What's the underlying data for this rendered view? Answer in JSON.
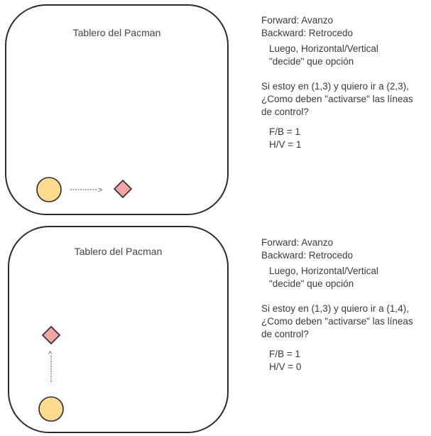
{
  "panels": [
    {
      "board_title": "Tablero del Pacman",
      "arrow_glyph": ">",
      "notes": {
        "forward": "Forward: Avanzo",
        "backward": "Backward: Retrocedo",
        "luego_1": "Luego, Horizontal/Vertical",
        "luego_2": "\"decide\" que opción",
        "question_1": "Si estoy en (1,3) y quiero ir a (2,3),",
        "question_2": "¿Como deben \"activarse\" las líneas",
        "question_3": "de control?",
        "fb": "F/B = 1",
        "hv": "H/V = 1"
      }
    },
    {
      "board_title": "Tablero del Pacman",
      "arrow_glyph": "^",
      "notes": {
        "forward": "Forward: Avanzo",
        "backward": "Backward: Retrocedo",
        "luego_1": "Luego, Horizontal/Vertical",
        "luego_2": "\"decide\" que opción",
        "question_1": "Si estoy en (1,3) y quiero ir a (1,4),",
        "question_2": "¿Como deben \"activarse\" las líneas",
        "question_3": "de control?",
        "fb": "F/B = 1",
        "hv": "H/V = 0"
      }
    }
  ],
  "colors": {
    "pacman_fill": "#fddc8f",
    "diamond_fill": "#f4a3a3",
    "outline": "#2b2b2b",
    "arrow": "#555555"
  },
  "icons": {
    "pacman": "circle",
    "target": "diamond"
  }
}
